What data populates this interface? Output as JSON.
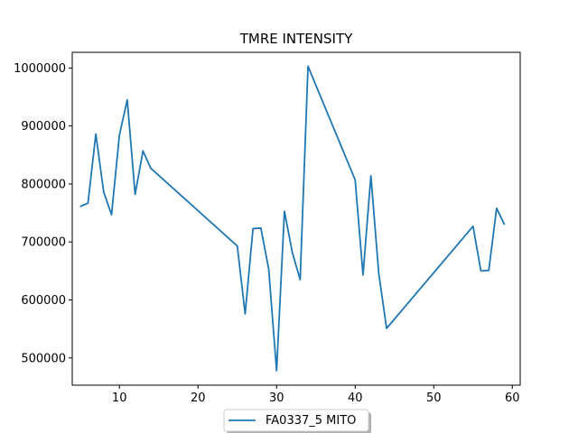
{
  "chart_data": {
    "type": "line",
    "title": "TMRE INTENSITY",
    "xlabel": "",
    "ylabel": "",
    "xlim": [
      4,
      61
    ],
    "ylim": [
      453000,
      1027000
    ],
    "xticks": [
      10,
      20,
      30,
      40,
      50,
      60
    ],
    "yticks": [
      500000,
      600000,
      700000,
      800000,
      900000,
      1000000
    ],
    "grid": false,
    "legend_position": "bottom-center-outside",
    "series": [
      {
        "name": "FA0337_5 MITO",
        "color": "#1f77b4",
        "x": [
          5,
          6,
          7,
          8,
          9,
          10,
          11,
          12,
          13,
          14,
          25,
          26,
          27,
          28,
          29,
          30,
          31,
          32,
          33,
          34,
          40,
          41,
          42,
          43,
          44,
          55,
          56,
          57,
          58,
          59
        ],
        "y": [
          761000,
          767000,
          886000,
          786000,
          747000,
          884000,
          945000,
          782000,
          857000,
          827000,
          693000,
          576000,
          723000,
          724000,
          653000,
          478000,
          753000,
          682000,
          635000,
          1003000,
          807000,
          643000,
          814000,
          646000,
          551000,
          727000,
          650000,
          651000,
          758000,
          730000
        ]
      }
    ]
  }
}
